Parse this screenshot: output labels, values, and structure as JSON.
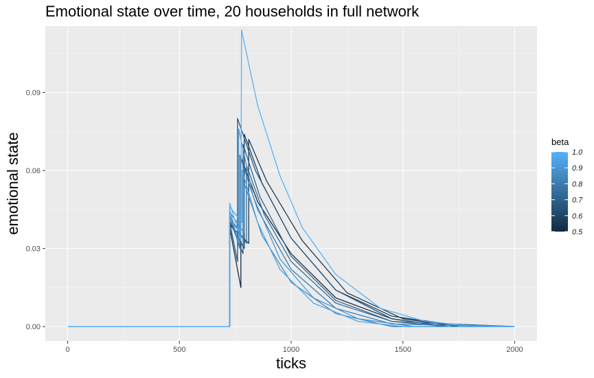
{
  "chart_data": {
    "type": "line",
    "title": "Emotional state over time, 20 households in full network",
    "xlabel": "ticks",
    "ylabel": "emotional state",
    "xlim": [
      -100,
      2100
    ],
    "ylim": [
      -0.0055,
      0.1155
    ],
    "x_ticks": [
      0,
      500,
      1000,
      1500,
      2000
    ],
    "x_tick_labels": [
      "0",
      "500",
      "1000",
      "1500",
      "2000"
    ],
    "y_ticks": [
      0.0,
      0.03,
      0.06,
      0.09
    ],
    "y_tick_labels": [
      "0.00",
      "0.03",
      "0.06",
      "0.09"
    ],
    "grid": true,
    "legend": {
      "title": "beta",
      "placement": "right",
      "colorbar": true,
      "range": [
        0.5,
        1.0
      ],
      "tick_values": [
        1.0,
        0.9,
        0.8,
        0.7,
        0.6,
        0.5
      ],
      "tick_labels": [
        "1.0",
        "0.9",
        "0.8",
        "0.7",
        "0.6",
        "0.5"
      ],
      "color_low": "#132B43",
      "color_high": "#56B1F7"
    },
    "colors": {
      "panel": "#EBEBEB",
      "grid_major": "#FFFFFF",
      "grid_minor": "#F5F5F5"
    },
    "series": [
      {
        "beta": 1.0,
        "points": [
          [
            0,
            0
          ],
          [
            725,
            0
          ],
          [
            725,
            0.0475
          ],
          [
            775,
            0.033
          ],
          [
            778,
            0.114
          ],
          [
            850,
            0.085
          ],
          [
            950,
            0.058
          ],
          [
            1050,
            0.038
          ],
          [
            1200,
            0.02
          ],
          [
            1400,
            0.007
          ],
          [
            1600,
            0.002
          ],
          [
            1800,
            0.0003
          ],
          [
            2000,
            0
          ]
        ]
      },
      {
        "beta": 0.95,
        "points": [
          [
            0,
            0
          ],
          [
            725,
            0
          ],
          [
            725,
            0.046
          ],
          [
            780,
            0.04
          ],
          [
            780,
            0.06
          ],
          [
            850,
            0.04
          ],
          [
            950,
            0.022
          ],
          [
            1100,
            0.009
          ],
          [
            1300,
            0.002
          ],
          [
            1500,
            0
          ],
          [
            2000,
            0
          ]
        ]
      },
      {
        "beta": 0.9,
        "points": [
          [
            0,
            0
          ],
          [
            725,
            0
          ],
          [
            725,
            0.045
          ],
          [
            765,
            0.032
          ],
          [
            765,
            0.076
          ],
          [
            830,
            0.05
          ],
          [
            950,
            0.026
          ],
          [
            1100,
            0.011
          ],
          [
            1300,
            0.003
          ],
          [
            1550,
            0
          ],
          [
            2000,
            0
          ]
        ]
      },
      {
        "beta": 0.85,
        "points": [
          [
            0,
            0
          ],
          [
            725,
            0
          ],
          [
            725,
            0.044
          ],
          [
            790,
            0.036
          ],
          [
            790,
            0.055
          ],
          [
            870,
            0.035
          ],
          [
            1000,
            0.017
          ],
          [
            1200,
            0.005
          ],
          [
            1450,
            0
          ],
          [
            2000,
            0
          ]
        ]
      },
      {
        "beta": 0.8,
        "points": [
          [
            0,
            0
          ],
          [
            725,
            0
          ],
          [
            725,
            0.043
          ],
          [
            770,
            0.03
          ],
          [
            770,
            0.066
          ],
          [
            850,
            0.045
          ],
          [
            1000,
            0.022
          ],
          [
            1200,
            0.007
          ],
          [
            1450,
            0.001
          ],
          [
            2000,
            0
          ]
        ]
      },
      {
        "beta": 0.75,
        "points": [
          [
            0,
            0
          ],
          [
            725,
            0
          ],
          [
            725,
            0.042
          ],
          [
            800,
            0.032
          ],
          [
            800,
            0.062
          ],
          [
            880,
            0.043
          ],
          [
            1000,
            0.025
          ],
          [
            1200,
            0.009
          ],
          [
            1450,
            0.002
          ],
          [
            2000,
            0
          ]
        ]
      },
      {
        "beta": 0.7,
        "points": [
          [
            0,
            0
          ],
          [
            725,
            0
          ],
          [
            725,
            0.041
          ],
          [
            785,
            0.028
          ],
          [
            785,
            0.07
          ],
          [
            860,
            0.05
          ],
          [
            1000,
            0.027
          ],
          [
            1200,
            0.01
          ],
          [
            1450,
            0.002
          ],
          [
            1700,
            0
          ],
          [
            2000,
            0
          ]
        ]
      },
      {
        "beta": 0.65,
        "points": [
          [
            0,
            0
          ],
          [
            725,
            0
          ],
          [
            725,
            0.04
          ],
          [
            760,
            0.025
          ],
          [
            760,
            0.08
          ],
          [
            840,
            0.06
          ],
          [
            1000,
            0.034
          ],
          [
            1200,
            0.014
          ],
          [
            1450,
            0.003
          ],
          [
            1700,
            0
          ],
          [
            2000,
            0
          ]
        ]
      },
      {
        "beta": 0.6,
        "points": [
          [
            0,
            0
          ],
          [
            725,
            0
          ],
          [
            725,
            0.04
          ],
          [
            790,
            0.03
          ],
          [
            790,
            0.074
          ],
          [
            870,
            0.055
          ],
          [
            1000,
            0.034
          ],
          [
            1200,
            0.014
          ],
          [
            1450,
            0.004
          ],
          [
            1700,
            0.001
          ],
          [
            2000,
            0
          ]
        ]
      },
      {
        "beta": 0.55,
        "points": [
          [
            0,
            0
          ],
          [
            725,
            0
          ],
          [
            725,
            0.039
          ],
          [
            810,
            0.032
          ],
          [
            810,
            0.072
          ],
          [
            890,
            0.056
          ],
          [
            1050,
            0.033
          ],
          [
            1250,
            0.013
          ],
          [
            1500,
            0.003
          ],
          [
            1750,
            0
          ],
          [
            2000,
            0
          ]
        ]
      },
      {
        "beta": 0.5,
        "points": [
          [
            0,
            0
          ],
          [
            725,
            0
          ],
          [
            725,
            0.038
          ],
          [
            775,
            0.015
          ],
          [
            775,
            0.065
          ],
          [
            850,
            0.048
          ],
          [
            1000,
            0.028
          ],
          [
            1200,
            0.011
          ],
          [
            1450,
            0.003
          ],
          [
            1700,
            0
          ],
          [
            2000,
            0
          ]
        ]
      }
    ]
  }
}
